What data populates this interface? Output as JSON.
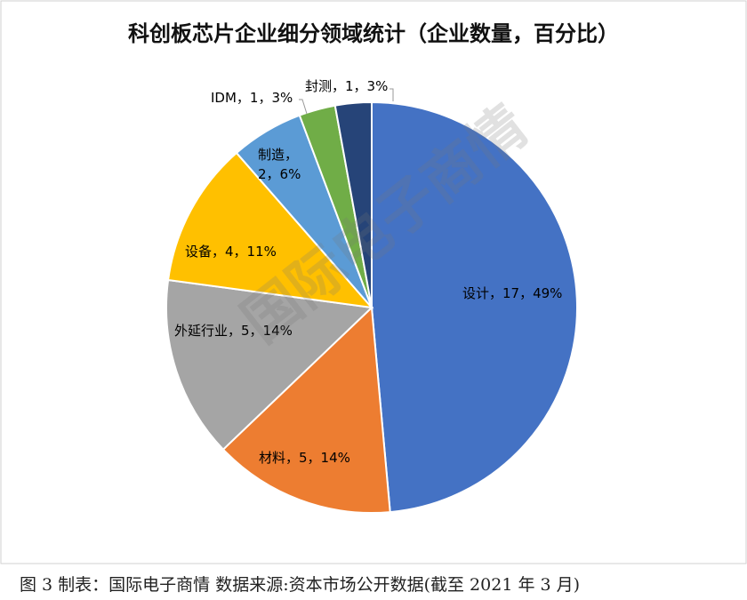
{
  "chart_data": {
    "type": "pie",
    "title": "科创板芯片企业细分领域统计（企业数量，百分比）",
    "categories": [
      "设计",
      "材料",
      "外延行业",
      "设备",
      "制造",
      "IDM",
      "封测"
    ],
    "values": [
      17,
      5,
      5,
      4,
      2,
      1,
      1
    ],
    "value_labels": [
      "设计，17，49%",
      "材料，5，14%",
      "外延行业，5，14%",
      "设备，4，11%",
      "制造，2，6%",
      "IDM，1，3%",
      "封测，1，3%"
    ],
    "colors": [
      "#4472c4",
      "#ed7d31",
      "#a5a5a5",
      "#ffc000",
      "#5b9bd5",
      "#70ad47",
      "#264478"
    ],
    "watermark": "国际电子商情",
    "caption": "图 3 制表：国际电子商情  数据来源:资本市场公开数据(截至 2021 年 3 月)"
  }
}
